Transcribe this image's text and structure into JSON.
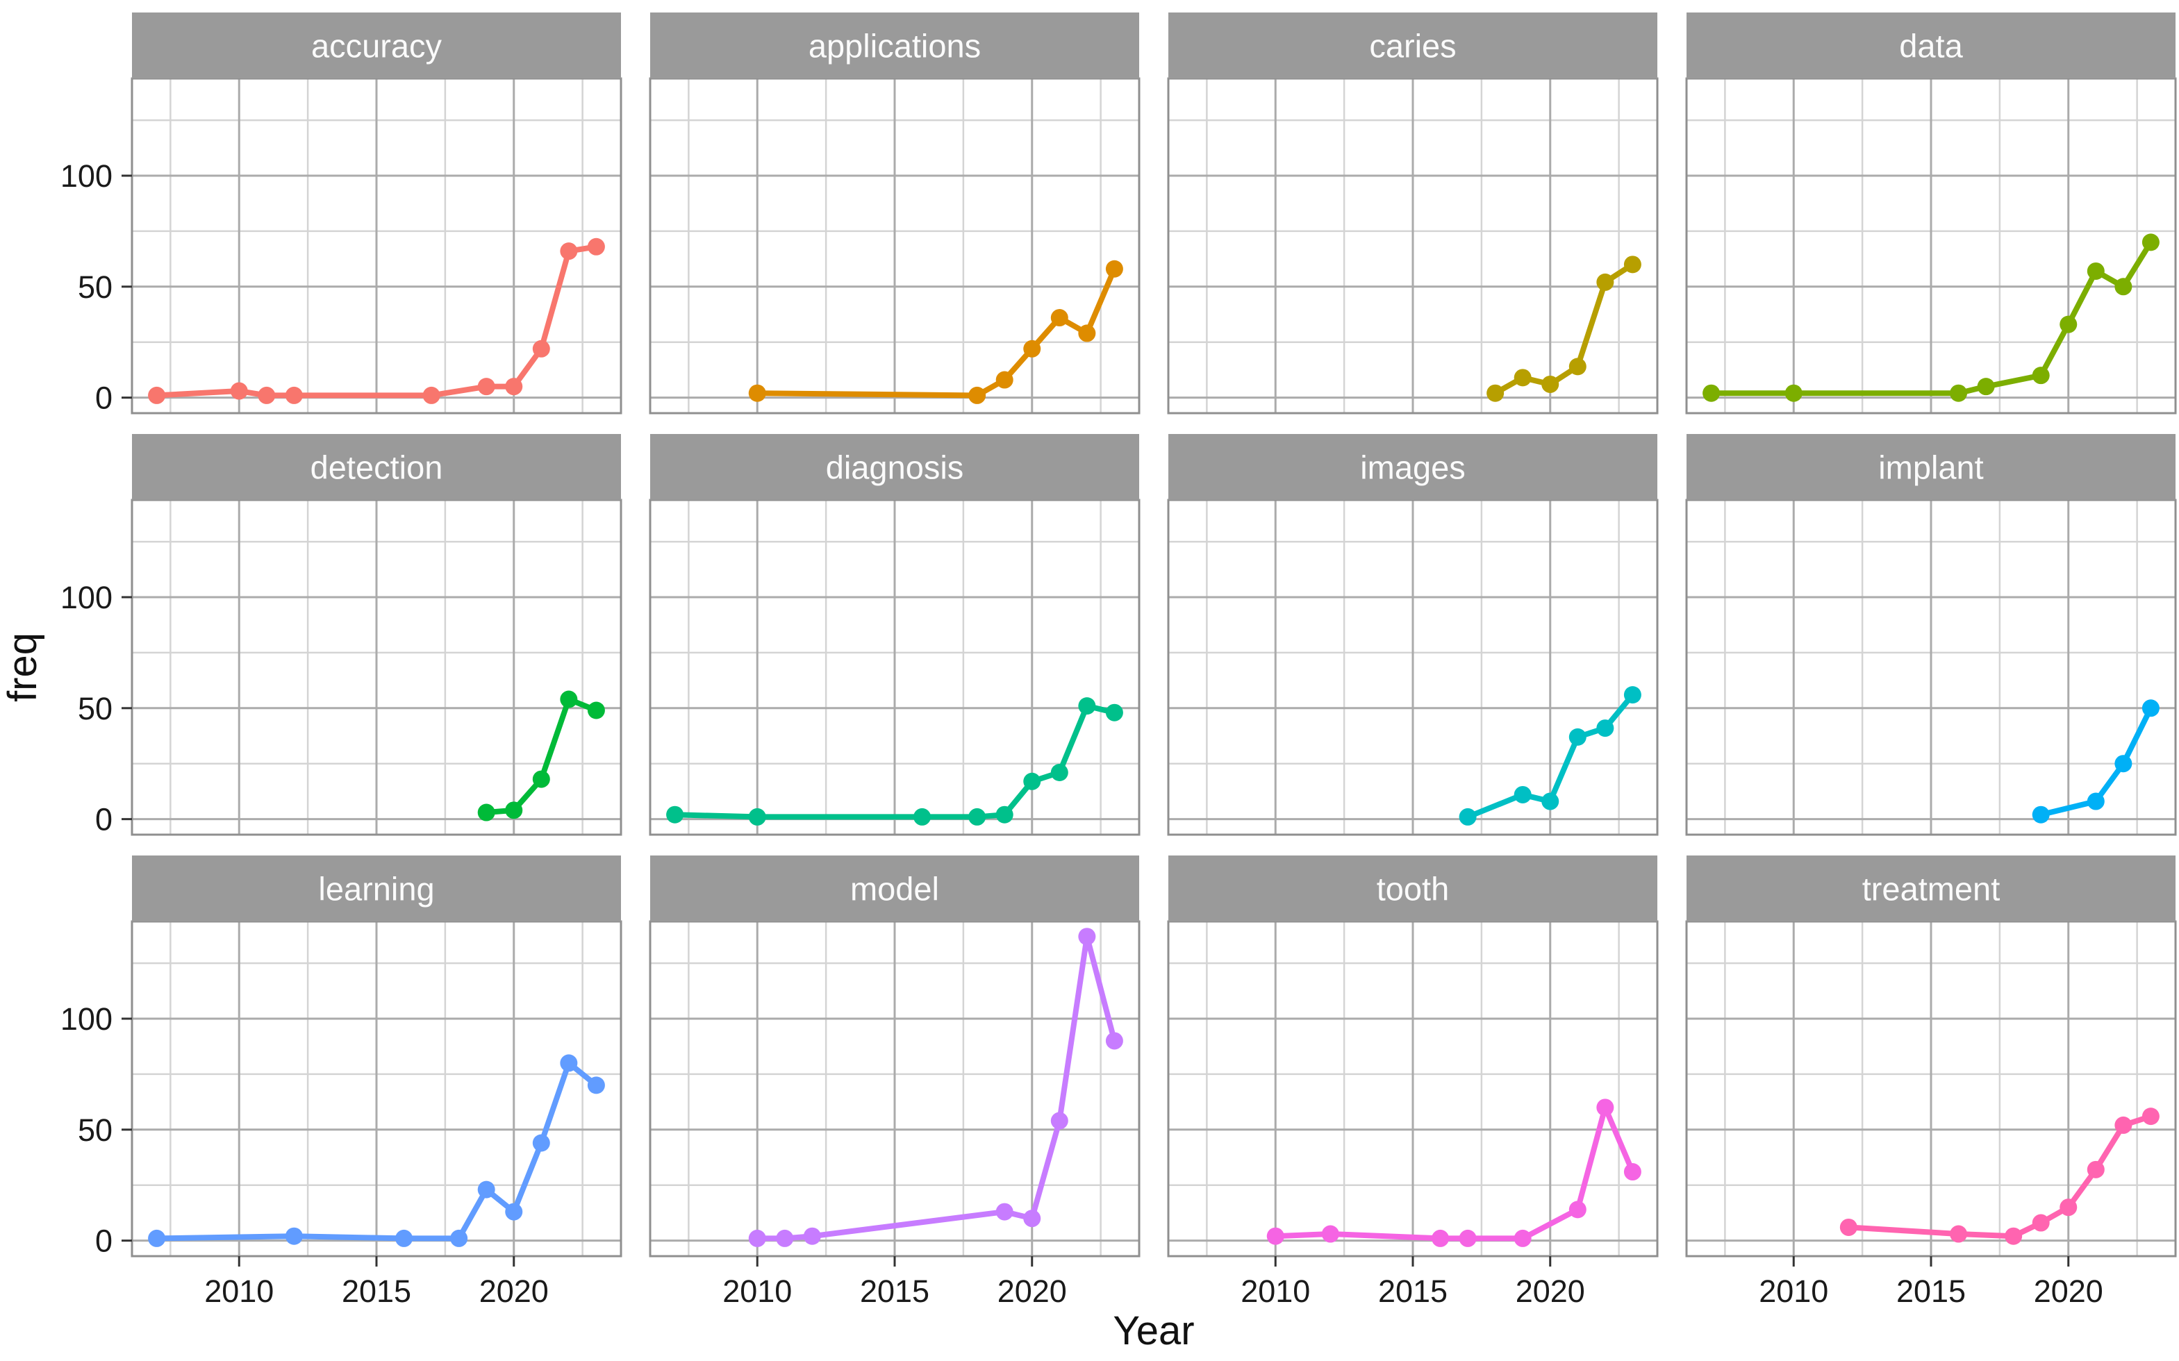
{
  "figure": {
    "xlabel": "Year",
    "ylabel": "freq"
  },
  "axes": {
    "x_ticks": [
      2010,
      2015,
      2020
    ],
    "x_minor": [
      2007.5,
      2012.5,
      2017.5,
      2022.5
    ],
    "y_ticks": [
      0,
      50,
      100
    ],
    "y_minor": [
      25,
      75,
      125
    ],
    "x_domain": [
      2006.1,
      2023.9
    ],
    "y_domain": [
      -7,
      143.8
    ],
    "grid": "on",
    "legend": "none"
  },
  "style": {
    "panel_background": "#FFFFFF",
    "panel_border": "#8F8F8F",
    "strip_fill": "#9A9A9A",
    "strip_text_color": "#FBFBFB",
    "grid_major_color": "#ABABAB",
    "grid_minor_color": "#D4D4D4",
    "tick_color": "#333333"
  },
  "chart_data": [
    {
      "type": "line",
      "title": "accuracy",
      "color": "#F8766D",
      "x": [
        2007,
        2010,
        2011,
        2012,
        2017,
        2019,
        2020,
        2021,
        2022,
        2023
      ],
      "y": [
        1,
        3,
        1,
        1,
        1,
        5,
        5,
        22,
        66,
        68
      ]
    },
    {
      "type": "line",
      "title": "applications",
      "color": "#DE8C00",
      "x": [
        2010,
        2018,
        2019,
        2020,
        2021,
        2022,
        2023
      ],
      "y": [
        2,
        1,
        8,
        22,
        36,
        29,
        58
      ]
    },
    {
      "type": "line",
      "title": "caries",
      "color": "#B79F00",
      "x": [
        2018,
        2019,
        2020,
        2021,
        2022,
        2023
      ],
      "y": [
        2,
        9,
        6,
        14,
        52,
        60
      ]
    },
    {
      "type": "line",
      "title": "data",
      "color": "#7CAE00",
      "x": [
        2007,
        2010,
        2016,
        2017,
        2019,
        2020,
        2021,
        2022,
        2023
      ],
      "y": [
        2,
        2,
        2,
        5,
        10,
        33,
        57,
        50,
        70
      ]
    },
    {
      "type": "line",
      "title": "detection",
      "color": "#00BA38",
      "x": [
        2019,
        2020,
        2021,
        2022,
        2023
      ],
      "y": [
        3,
        4,
        18,
        54,
        49
      ]
    },
    {
      "type": "line",
      "title": "diagnosis",
      "color": "#00C08B",
      "x": [
        2007,
        2010,
        2016,
        2018,
        2019,
        2020,
        2021,
        2022,
        2023
      ],
      "y": [
        2,
        1,
        1,
        1,
        2,
        17,
        21,
        51,
        48
      ]
    },
    {
      "type": "line",
      "title": "images",
      "color": "#00BFC4",
      "x": [
        2017,
        2019,
        2020,
        2021,
        2022,
        2023
      ],
      "y": [
        1,
        11,
        8,
        37,
        41,
        56
      ]
    },
    {
      "type": "line",
      "title": "implant",
      "color": "#00B0F6",
      "x": [
        2019,
        2021,
        2022,
        2023
      ],
      "y": [
        2,
        8,
        25,
        50
      ]
    },
    {
      "type": "line",
      "title": "learning",
      "color": "#619CFF",
      "x": [
        2007,
        2012,
        2016,
        2018,
        2019,
        2020,
        2021,
        2022,
        2023
      ],
      "y": [
        1,
        2,
        1,
        1,
        23,
        13,
        44,
        80,
        70
      ]
    },
    {
      "type": "line",
      "title": "model",
      "color": "#C77CFF",
      "x": [
        2010,
        2011,
        2012,
        2019,
        2020,
        2021,
        2022,
        2023
      ],
      "y": [
        1,
        1,
        2,
        13,
        10,
        54,
        137,
        90
      ]
    },
    {
      "type": "line",
      "title": "tooth",
      "color": "#F564E3",
      "x": [
        2010,
        2012,
        2016,
        2017,
        2019,
        2021,
        2022,
        2023
      ],
      "y": [
        2,
        3,
        1,
        1,
        1,
        14,
        60,
        31
      ]
    },
    {
      "type": "line",
      "title": "treatment",
      "color": "#FF64B0",
      "x": [
        2012,
        2016,
        2018,
        2019,
        2020,
        2021,
        2022,
        2023
      ],
      "y": [
        6,
        3,
        2,
        8,
        15,
        32,
        52,
        56
      ]
    }
  ]
}
